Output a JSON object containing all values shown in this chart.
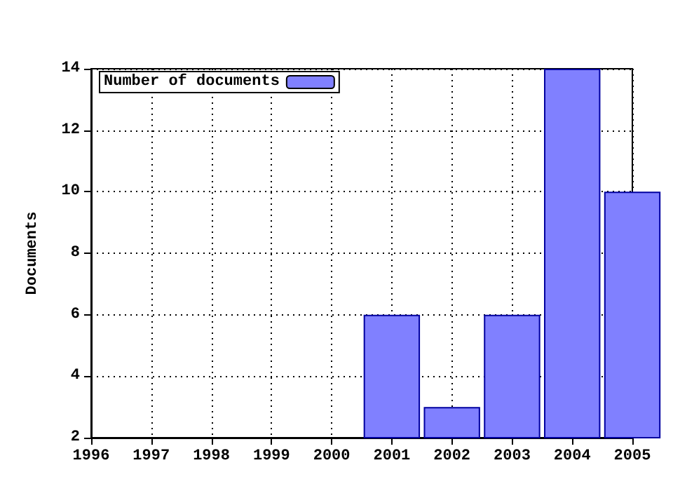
{
  "chart_data": {
    "type": "bar",
    "ylabel": "Documents",
    "x": [
      2001,
      2002,
      2003,
      2004,
      2005
    ],
    "series": [
      {
        "name": "Number of documents",
        "color": "#8080ff",
        "values": [
          6,
          3,
          6,
          14,
          10
        ]
      }
    ],
    "xlim": [
      1996,
      2005
    ],
    "xticks": [
      1996,
      1997,
      1998,
      1999,
      2000,
      2001,
      2002,
      2003,
      2004,
      2005
    ],
    "ylim": [
      2,
      14
    ],
    "yticks": [
      2,
      4,
      6,
      8,
      10,
      12,
      14
    ],
    "grid": true,
    "legend": "top left"
  }
}
